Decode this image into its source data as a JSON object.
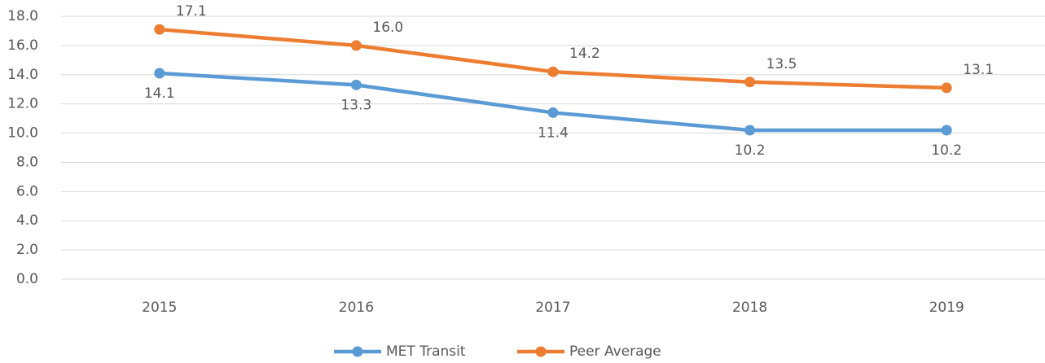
{
  "chart_data": {
    "type": "line",
    "categories": [
      "2015",
      "2016",
      "2017",
      "2018",
      "2019"
    ],
    "series": [
      {
        "name": "MET Transit",
        "color": "#5b9bd5",
        "values": [
          14.1,
          13.3,
          11.4,
          10.2,
          10.2
        ],
        "value_labels": [
          "14.1",
          "13.3",
          "11.4",
          "10.2",
          "10.2"
        ]
      },
      {
        "name": "Peer Average",
        "color": "#ed7d31",
        "values": [
          17.1,
          16.0,
          14.2,
          13.5,
          13.1
        ],
        "value_labels": [
          "17.1",
          "16.0",
          "14.2",
          "13.5",
          "13.1"
        ]
      }
    ],
    "ylim": [
      0,
      18
    ],
    "yticks": [
      {
        "value": 0,
        "label": "0.0"
      },
      {
        "value": 2,
        "label": "2.0"
      },
      {
        "value": 4,
        "label": "4.0"
      },
      {
        "value": 6,
        "label": "6.0"
      },
      {
        "value": 8,
        "label": "8.0"
      },
      {
        "value": 10,
        "label": "10.0"
      },
      {
        "value": 12,
        "label": "12.0"
      },
      {
        "value": 14,
        "label": "14.0"
      },
      {
        "value": 16,
        "label": "16.0"
      },
      {
        "value": 18,
        "label": "18.0"
      }
    ],
    "grid": true,
    "legend": "bottom"
  }
}
